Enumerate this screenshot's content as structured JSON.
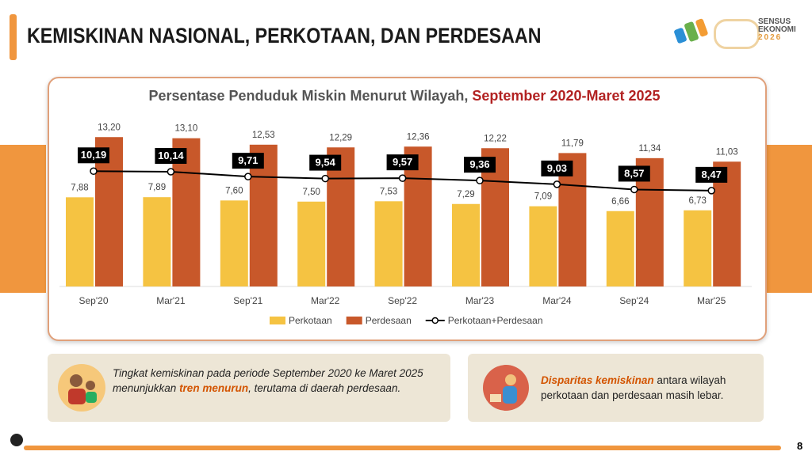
{
  "header": {
    "title": "KEMISKINAN NASIONAL, PERKOTAAN, DAN PERDESAAN",
    "logo_lines": [
      "SENSUS",
      "EKONOMI",
      "2026"
    ]
  },
  "chart_data": {
    "type": "bar",
    "title": "Persentase Penduduk Miskin Menurut Wilayah,",
    "title_highlight": "September 2020-Maret 2025",
    "categories": [
      "Sep'20",
      "Mar'21",
      "Sep'21",
      "Mar'22",
      "Sep'22",
      "Mar'23",
      "Mar'24",
      "Sep'24",
      "Mar'25"
    ],
    "series": [
      {
        "name": "Perkotaan",
        "color": "#f5c342",
        "values": [
          7.88,
          7.89,
          7.6,
          7.5,
          7.53,
          7.29,
          7.09,
          6.66,
          6.73
        ],
        "value_labels": [
          "7,88",
          "7,89",
          "7,60",
          "7,50",
          "7,53",
          "7,29",
          "7,09",
          "6,66",
          "6,73"
        ]
      },
      {
        "name": "Perdesaan",
        "color": "#c8582a",
        "values": [
          13.2,
          13.1,
          12.53,
          12.29,
          12.36,
          12.22,
          11.79,
          11.34,
          11.03
        ],
        "value_labels": [
          "13,20",
          "13,10",
          "12,53",
          "12,29",
          "12,36",
          "12,22",
          "11,79",
          "11,34",
          "11,03"
        ]
      },
      {
        "name": "Perkotaan+Perdesaan",
        "type": "line",
        "color": "#000000",
        "values": [
          10.19,
          10.14,
          9.71,
          9.54,
          9.57,
          9.36,
          9.03,
          8.57,
          8.47
        ],
        "value_labels": [
          "10,19",
          "10,14",
          "9,71",
          "9,54",
          "9,57",
          "9,36",
          "9,03",
          "8,57",
          "8,47"
        ]
      }
    ],
    "legend": "bottom"
  },
  "notes": [
    {
      "parts": [
        "Tingkat kemiskinan pada periode September 2020 ke Maret 2025  menunjukkan ",
        "tren menurun",
        ", terutama di daerah perdesaan."
      ]
    },
    {
      "parts": [
        "Disparitas kemiskinan",
        " antara wilayah perkotaan dan perdesaan masih lebar."
      ]
    }
  ],
  "page": "8"
}
